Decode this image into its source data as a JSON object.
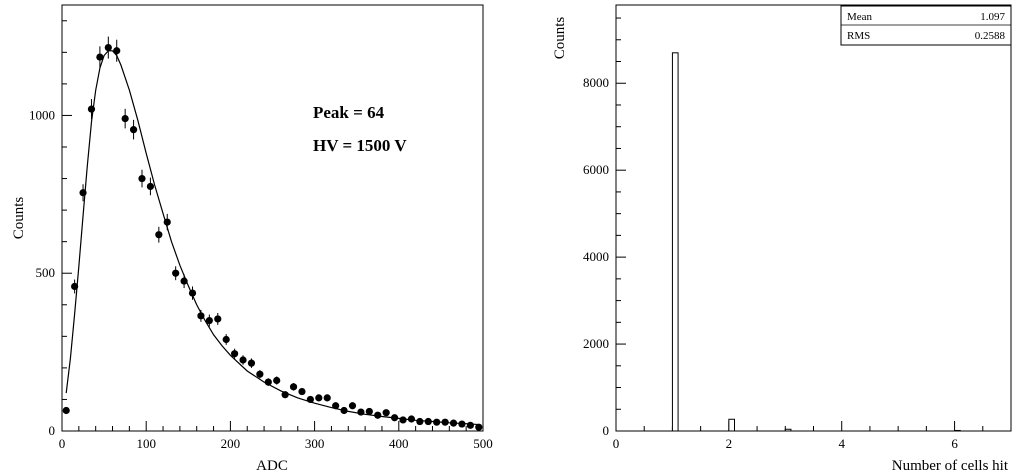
{
  "chart_data": [
    {
      "type": "scatter",
      "xlabel": "ADC",
      "ylabel": "Counts",
      "xlim": [
        0,
        500
      ],
      "ylim": [
        0,
        1350
      ],
      "xticks": [
        0,
        100,
        200,
        300,
        400,
        500
      ],
      "yticks": [
        0,
        500,
        1000
      ],
      "annotations": [
        "Peak = 64",
        "HV = 1500 V"
      ],
      "series": [
        {
          "points": [
            [
              5,
              65
            ],
            [
              15,
              458
            ],
            [
              25,
              755
            ],
            [
              35,
              1020
            ],
            [
              45,
              1185
            ],
            [
              55,
              1215
            ],
            [
              65,
              1205
            ],
            [
              75,
              990
            ],
            [
              85,
              955
            ],
            [
              95,
              800
            ],
            [
              105,
              775
            ],
            [
              115,
              622
            ],
            [
              125,
              662
            ],
            [
              135,
              500
            ],
            [
              145,
              475
            ],
            [
              155,
              437
            ],
            [
              165,
              365
            ],
            [
              175,
              350
            ],
            [
              185,
              355
            ],
            [
              195,
              290
            ],
            [
              205,
              245
            ],
            [
              215,
              225
            ],
            [
              225,
              215
            ],
            [
              235,
              180
            ],
            [
              245,
              155
            ],
            [
              255,
              160
            ],
            [
              265,
              115
            ],
            [
              275,
              140
            ],
            [
              285,
              125
            ],
            [
              295,
              100
            ],
            [
              305,
              105
            ],
            [
              315,
              105
            ],
            [
              325,
              80
            ],
            [
              335,
              65
            ],
            [
              345,
              80
            ],
            [
              355,
              60
            ],
            [
              365,
              62
            ],
            [
              375,
              50
            ],
            [
              385,
              58
            ],
            [
              395,
              42
            ],
            [
              405,
              35
            ],
            [
              415,
              38
            ],
            [
              425,
              30
            ],
            [
              435,
              30
            ],
            [
              445,
              28
            ],
            [
              455,
              28
            ],
            [
              465,
              25
            ],
            [
              475,
              22
            ],
            [
              485,
              18
            ],
            [
              495,
              12
            ]
          ],
          "errors": [
            8,
            22,
            27,
            32,
            34,
            35,
            35,
            31,
            31,
            28,
            28,
            25,
            26,
            22,
            22,
            21,
            19,
            19,
            19,
            17,
            16,
            15,
            15,
            13,
            12,
            13,
            11,
            12,
            11,
            10,
            10,
            10,
            9,
            8,
            9,
            8,
            8,
            7,
            8,
            6,
            6,
            6,
            5,
            5,
            5,
            5,
            5,
            5,
            4,
            3
          ]
        },
        {
          "type": "line",
          "points": [
            [
              5,
              120
            ],
            [
              10,
              230
            ],
            [
              15,
              370
            ],
            [
              20,
              520
            ],
            [
              25,
              680
            ],
            [
              30,
              840
            ],
            [
              35,
              980
            ],
            [
              40,
              1080
            ],
            [
              45,
              1150
            ],
            [
              50,
              1190
            ],
            [
              55,
              1205
            ],
            [
              60,
              1205
            ],
            [
              65,
              1190
            ],
            [
              70,
              1160
            ],
            [
              80,
              1080
            ],
            [
              90,
              985
            ],
            [
              100,
              880
            ],
            [
              110,
              780
            ],
            [
              120,
              690
            ],
            [
              130,
              600
            ],
            [
              140,
              525
            ],
            [
              150,
              460
            ],
            [
              160,
              400
            ],
            [
              170,
              350
            ],
            [
              180,
              305
            ],
            [
              190,
              270
            ],
            [
              200,
              240
            ],
            [
              220,
              190
            ],
            [
              240,
              155
            ],
            [
              260,
              127
            ],
            [
              280,
              105
            ],
            [
              300,
              88
            ],
            [
              320,
              74
            ],
            [
              340,
              62
            ],
            [
              360,
              53
            ],
            [
              380,
              46
            ],
            [
              400,
              40
            ],
            [
              420,
              34
            ],
            [
              440,
              30
            ],
            [
              460,
              26
            ],
            [
              480,
              23
            ],
            [
              497,
              20
            ]
          ]
        }
      ]
    },
    {
      "type": "bar",
      "xlabel": "Number of cells hit",
      "ylabel": "Counts",
      "xlim": [
        0,
        7
      ],
      "ylim": [
        0,
        9800
      ],
      "xticks": [
        0,
        2,
        4,
        6
      ],
      "yticks": [
        0,
        2000,
        4000,
        6000,
        8000
      ],
      "bin_width": 0.1,
      "bins": [
        {
          "center": 1.05,
          "value": 8700
        },
        {
          "center": 2.05,
          "value": 270
        },
        {
          "center": 3.05,
          "value": 40
        },
        {
          "center": 6.05,
          "value": 12
        }
      ],
      "stats": [
        {
          "label": "Mean",
          "value": "1.097"
        },
        {
          "label": "RMS",
          "value": "0.2588"
        }
      ]
    }
  ]
}
